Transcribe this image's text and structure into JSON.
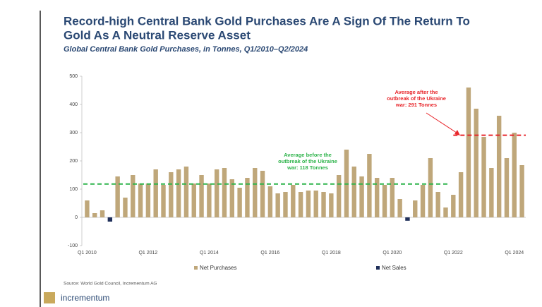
{
  "header": {
    "title_lines": [
      "Record-high Central Bank Gold Purchases Are A Sign Of The Return To",
      "Gold As A Neutral Reserve Asset"
    ]
  },
  "chart_data": {
    "type": "bar",
    "subtitle": "Global Central Bank Gold Purchases, in Tonnes, Q1/2010–Q2/2024",
    "categories": [
      "Q1 2010",
      null,
      null,
      null,
      null,
      null,
      null,
      null,
      "Q1 2012",
      null,
      null,
      null,
      null,
      null,
      null,
      null,
      "Q1 2014",
      null,
      null,
      null,
      null,
      null,
      null,
      null,
      "Q1 2016",
      null,
      null,
      null,
      null,
      null,
      null,
      null,
      "Q1 2018",
      null,
      null,
      null,
      null,
      null,
      null,
      null,
      "Q1 2020",
      null,
      null,
      null,
      null,
      null,
      null,
      null,
      "Q1 2022",
      null,
      null,
      null,
      null,
      null,
      null,
      null,
      "Q1 2024",
      null
    ],
    "series": [
      {
        "name": "Net Purchases",
        "color": "#bfa77a",
        "values": [
          60,
          15,
          25,
          null,
          145,
          70,
          150,
          120,
          120,
          170,
          115,
          160,
          170,
          180,
          120,
          150,
          120,
          170,
          175,
          135,
          105,
          140,
          175,
          165,
          110,
          85,
          90,
          115,
          90,
          95,
          95,
          90,
          85,
          150,
          240,
          180,
          145,
          225,
          140,
          115,
          140,
          65,
          null,
          60,
          115,
          210,
          90,
          35,
          80,
          160,
          460,
          385,
          285,
          175,
          360,
          210,
          300,
          185
        ]
      },
      {
        "name": "Net Sales",
        "color": "#1f2f5a",
        "values": [
          null,
          null,
          null,
          -15,
          null,
          null,
          null,
          null,
          null,
          null,
          null,
          null,
          null,
          null,
          null,
          null,
          null,
          null,
          null,
          null,
          null,
          null,
          null,
          null,
          null,
          null,
          null,
          null,
          null,
          null,
          null,
          null,
          null,
          null,
          null,
          null,
          null,
          null,
          null,
          null,
          null,
          null,
          -12,
          null,
          null,
          null,
          null,
          null,
          null,
          null,
          null,
          null,
          null,
          null,
          null,
          null,
          null,
          null
        ]
      }
    ],
    "ylim": [
      -100,
      500
    ],
    "yticks": [
      -100,
      0,
      100,
      200,
      300,
      400,
      500
    ],
    "averages": [
      {
        "value": 118,
        "color": "#2db34a",
        "lines": [
          "Average before the",
          "outbreak of the Ukraine",
          "war: 118 Tonnes"
        ]
      },
      {
        "value": 291,
        "color": "#e8262b",
        "lines": [
          "Average after the",
          "outbreak of the Ukraine",
          "war: 291 Tonnes"
        ]
      }
    ],
    "legend": "bottom"
  },
  "footer": {
    "source": "Source: World Gold Council, Incrementum AG",
    "brand": "incrementum"
  }
}
